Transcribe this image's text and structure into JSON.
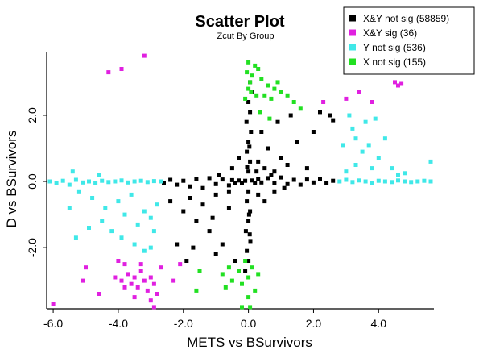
{
  "chart_data": {
    "type": "scatter",
    "title": "Scatter Plot",
    "subtitle": "Zcut By Group",
    "xlabel": "METS  vs  BSurvivors",
    "ylabel": "D  vs  BSurvivors",
    "xlim": [
      -6.2,
      5.7
    ],
    "ylim": [
      -3.85,
      3.9
    ],
    "x_ticks": [
      {
        "value": -6.0,
        "label": "-6.0"
      },
      {
        "value": -4.0,
        "label": "-4.0"
      },
      {
        "value": -2.0,
        "label": "-2.0"
      },
      {
        "value": 0.0,
        "label": "0.0"
      },
      {
        "value": 2.0,
        "label": "2.0"
      },
      {
        "value": 4.0,
        "label": "4.0"
      }
    ],
    "y_ticks": [
      {
        "value": -2.0,
        "label": "-2.0"
      },
      {
        "value": 0.0,
        "label": "0.0"
      },
      {
        "value": 2.0,
        "label": "2.0"
      }
    ],
    "legend_position": "top-right",
    "series": [
      {
        "name": "X&Y not sig (58859)",
        "color": "#000000",
        "points": [
          [
            -2.6,
            -0.05
          ],
          [
            -2.4,
            0.05
          ],
          [
            -2.2,
            -0.1
          ],
          [
            -2.0,
            0.02
          ],
          [
            -1.8,
            -0.15
          ],
          [
            -1.6,
            0.08
          ],
          [
            -1.4,
            -0.2
          ],
          [
            -1.2,
            0.1
          ],
          [
            -1.0,
            -0.08
          ],
          [
            -0.8,
            0.06
          ],
          [
            -0.6,
            -0.12
          ],
          [
            -0.5,
            0.04
          ],
          [
            -0.4,
            -0.06
          ],
          [
            -0.3,
            0.03
          ],
          [
            -0.2,
            -0.05
          ],
          [
            -0.1,
            0.02
          ],
          [
            0.1,
            0.03
          ],
          [
            0.2,
            -0.05
          ],
          [
            0.3,
            0.08
          ],
          [
            0.4,
            -0.03
          ],
          [
            0.6,
            0.1
          ],
          [
            0.8,
            -0.06
          ],
          [
            1.0,
            0.12
          ],
          [
            1.2,
            -0.08
          ],
          [
            1.4,
            0.05
          ],
          [
            1.6,
            -0.1
          ],
          [
            1.8,
            0.06
          ],
          [
            2.0,
            -0.03
          ],
          [
            2.2,
            0.08
          ],
          [
            2.4,
            -0.05
          ],
          [
            2.6,
            0.02
          ],
          [
            0.0,
            0.3
          ],
          [
            0.05,
            0.6
          ],
          [
            -0.05,
            0.9
          ],
          [
            0.0,
            1.2
          ],
          [
            0.08,
            1.5
          ],
          [
            -0.06,
            1.8
          ],
          [
            0.05,
            2.1
          ],
          [
            0.0,
            2.4
          ],
          [
            0.1,
            2.7
          ],
          [
            0.05,
            3.0
          ],
          [
            -0.04,
            0.45
          ],
          [
            0.03,
            1.05
          ],
          [
            0.0,
            -0.3
          ],
          [
            -0.05,
            -0.6
          ],
          [
            0.05,
            -0.9
          ],
          [
            0.0,
            -1.2
          ],
          [
            -0.08,
            -1.5
          ],
          [
            0.06,
            -1.8
          ],
          [
            -0.05,
            -2.1
          ],
          [
            0.0,
            -2.4
          ],
          [
            -0.1,
            -2.7
          ],
          [
            0.02,
            -1.0
          ],
          [
            0.04,
            -1.6
          ],
          [
            -2.4,
            -0.6
          ],
          [
            -2.0,
            -0.9
          ],
          [
            -1.8,
            -0.5
          ],
          [
            -1.6,
            -1.2
          ],
          [
            -1.4,
            -0.7
          ],
          [
            -1.2,
            -1.5
          ],
          [
            -1.0,
            -0.4
          ],
          [
            -0.8,
            -1.9
          ],
          [
            -0.6,
            -0.8
          ],
          [
            -0.4,
            -2.4
          ],
          [
            -2.2,
            -1.9
          ],
          [
            -1.7,
            -2.0
          ],
          [
            -1.1,
            -1.1
          ],
          [
            -1.9,
            -2.4
          ],
          [
            -1.0,
            -2.2
          ],
          [
            0.3,
            0.6
          ],
          [
            0.5,
            0.4
          ],
          [
            0.6,
            1.0
          ],
          [
            0.8,
            0.3
          ],
          [
            1.0,
            0.7
          ],
          [
            1.2,
            0.5
          ],
          [
            1.5,
            1.2
          ],
          [
            2.0,
            1.5
          ],
          [
            2.2,
            2.1
          ],
          [
            0.4,
            1.5
          ],
          [
            0.9,
            1.8
          ],
          [
            1.3,
            2.0
          ],
          [
            0.7,
            0.2
          ],
          [
            1.8,
            0.4
          ],
          [
            0.25,
            0.3
          ],
          [
            -0.5,
            0.4
          ],
          [
            -0.3,
            0.7
          ],
          [
            0.3,
            -0.4
          ],
          [
            0.5,
            -0.6
          ],
          [
            0.8,
            -0.3
          ],
          [
            -0.6,
            -0.3
          ],
          [
            1.1,
            -0.2
          ],
          [
            -0.9,
            0.2
          ],
          [
            2.5,
            2.0
          ],
          [
            2.6,
            1.85
          ]
        ]
      },
      {
        "name": "X&Y sig (36)",
        "color": "#e020e0",
        "points": [
          [
            -4.3,
            3.3
          ],
          [
            -3.9,
            3.4
          ],
          [
            -3.2,
            3.8
          ],
          [
            -6.0,
            -3.7
          ],
          [
            -5.1,
            -3.0
          ],
          [
            -5.0,
            -2.6
          ],
          [
            -4.6,
            -3.4
          ],
          [
            -4.0,
            -2.4
          ],
          [
            -3.8,
            -2.5
          ],
          [
            -3.9,
            -3.0
          ],
          [
            -3.7,
            -2.8
          ],
          [
            -3.6,
            -3.1
          ],
          [
            -3.5,
            -2.9
          ],
          [
            -3.4,
            -3.2
          ],
          [
            -3.3,
            -2.7
          ],
          [
            -3.2,
            -3.0
          ],
          [
            -3.1,
            -3.3
          ],
          [
            -3.0,
            -2.9
          ],
          [
            -2.9,
            -3.1
          ],
          [
            -2.8,
            -3.4
          ],
          [
            -2.7,
            -2.6
          ],
          [
            -3.5,
            -3.5
          ],
          [
            -3.0,
            -3.6
          ],
          [
            -2.9,
            -3.8
          ],
          [
            -3.8,
            -3.2
          ],
          [
            -3.3,
            -2.5
          ],
          [
            -2.3,
            -3.0
          ],
          [
            -2.1,
            -2.5
          ],
          [
            -4.1,
            -2.9
          ],
          [
            2.3,
            2.4
          ],
          [
            3.0,
            2.5
          ],
          [
            3.8,
            2.4
          ],
          [
            4.5,
            3.0
          ],
          [
            4.7,
            2.95
          ],
          [
            4.6,
            2.9
          ],
          [
            3.4,
            2.7
          ]
        ]
      },
      {
        "name": "Y not sig (536)",
        "color": "#40e8e8",
        "points": [
          [
            -6.1,
            0.0
          ],
          [
            -5.9,
            -0.05
          ],
          [
            -5.7,
            0.02
          ],
          [
            -5.5,
            -0.1
          ],
          [
            -5.3,
            0.05
          ],
          [
            -5.1,
            -0.03
          ],
          [
            -4.9,
            0.0
          ],
          [
            -4.7,
            -0.05
          ],
          [
            -4.5,
            0.02
          ],
          [
            -4.3,
            -0.02
          ],
          [
            -4.1,
            0.0
          ],
          [
            -3.9,
            0.03
          ],
          [
            -3.7,
            -0.03
          ],
          [
            -3.5,
            0.0
          ],
          [
            -3.3,
            0.02
          ],
          [
            -3.1,
            -0.02
          ],
          [
            -2.9,
            0.01
          ],
          [
            -2.7,
            0.0
          ],
          [
            -5.4,
            0.3
          ],
          [
            -5.2,
            -0.3
          ],
          [
            -4.8,
            -0.5
          ],
          [
            -4.6,
            0.2
          ],
          [
            -4.4,
            -0.8
          ],
          [
            -4.0,
            -0.6
          ],
          [
            -3.8,
            -1.0
          ],
          [
            -3.6,
            -0.4
          ],
          [
            -3.4,
            -1.3
          ],
          [
            -3.2,
            -0.9
          ],
          [
            -3.0,
            -1.1
          ],
          [
            -2.8,
            -0.7
          ],
          [
            -4.5,
            -1.2
          ],
          [
            -4.2,
            -1.5
          ],
          [
            -3.9,
            -1.7
          ],
          [
            -3.5,
            -1.9
          ],
          [
            -3.2,
            -2.1
          ],
          [
            -4.9,
            -1.4
          ],
          [
            -5.5,
            -0.8
          ],
          [
            -5.3,
            -1.7
          ],
          [
            -2.9,
            -1.5
          ],
          [
            -3.0,
            -2.0
          ],
          [
            2.8,
            0.0
          ],
          [
            3.0,
            0.05
          ],
          [
            3.2,
            -0.02
          ],
          [
            3.4,
            0.03
          ],
          [
            3.6,
            0.0
          ],
          [
            3.8,
            -0.04
          ],
          [
            4.0,
            0.02
          ],
          [
            4.2,
            0.0
          ],
          [
            4.4,
            -0.02
          ],
          [
            4.6,
            0.03
          ],
          [
            4.8,
            0.0
          ],
          [
            5.0,
            -0.02
          ],
          [
            5.2,
            0.0
          ],
          [
            5.4,
            0.02
          ],
          [
            5.6,
            0.6
          ],
          [
            5.6,
            0.0
          ],
          [
            3.0,
            0.3
          ],
          [
            3.3,
            0.5
          ],
          [
            3.5,
            0.9
          ],
          [
            3.7,
            1.1
          ],
          [
            4.0,
            0.7
          ],
          [
            4.2,
            1.3
          ],
          [
            4.4,
            0.4
          ],
          [
            3.2,
            1.6
          ],
          [
            3.6,
            1.8
          ],
          [
            3.9,
            1.9
          ],
          [
            3.3,
            1.3
          ],
          [
            4.6,
            0.2
          ],
          [
            3.1,
            2.0
          ],
          [
            3.8,
            0.4
          ],
          [
            4.8,
            0.25
          ],
          [
            2.9,
            1.1
          ]
        ]
      },
      {
        "name": "X not sig (155)",
        "color": "#22e022",
        "points": [
          [
            0.0,
            3.6
          ],
          [
            -0.05,
            3.3
          ],
          [
            0.05,
            3.0
          ],
          [
            0.0,
            2.8
          ],
          [
            -0.1,
            2.5
          ],
          [
            0.08,
            2.7
          ],
          [
            0.1,
            3.2
          ],
          [
            0.2,
            3.5
          ],
          [
            0.25,
            2.6
          ],
          [
            0.3,
            3.4
          ],
          [
            0.4,
            3.1
          ],
          [
            0.5,
            2.6
          ],
          [
            0.6,
            2.9
          ],
          [
            0.7,
            2.5
          ],
          [
            0.8,
            2.8
          ],
          [
            0.9,
            3.0
          ],
          [
            1.0,
            2.7
          ],
          [
            1.2,
            2.6
          ],
          [
            1.4,
            2.4
          ],
          [
            1.6,
            2.2
          ],
          [
            0.35,
            2.1
          ],
          [
            0.65,
            1.9
          ],
          [
            -0.1,
            -2.4
          ],
          [
            0.1,
            -2.6
          ],
          [
            0.0,
            -2.9
          ],
          [
            -0.2,
            -3.1
          ],
          [
            0.2,
            -3.3
          ],
          [
            0.0,
            -3.5
          ],
          [
            -0.3,
            -2.7
          ],
          [
            0.3,
            -2.8
          ],
          [
            -0.5,
            -3.0
          ],
          [
            -0.6,
            -2.6
          ],
          [
            -0.7,
            -3.2
          ],
          [
            -0.8,
            -2.8
          ],
          [
            -1.5,
            -2.7
          ],
          [
            -1.6,
            -3.3
          ],
          [
            0.05,
            -3.8
          ],
          [
            -0.2,
            -3.8
          ]
        ]
      }
    ]
  }
}
